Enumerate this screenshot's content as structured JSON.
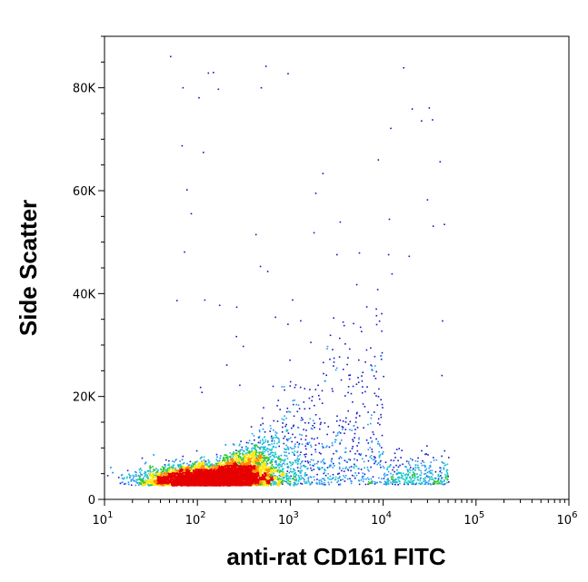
{
  "chart_data": {
    "type": "scatter",
    "title": "",
    "xlabel": "anti-rat CD161 FITC",
    "ylabel": "Side Scatter",
    "x_scale": "log",
    "xlim": [
      10,
      1000000
    ],
    "ylim": [
      0,
      90000
    ],
    "x_ticks": [
      {
        "value": 10,
        "base": "10",
        "exp": "1"
      },
      {
        "value": 100,
        "base": "10",
        "exp": "2"
      },
      {
        "value": 1000,
        "base": "10",
        "exp": "3"
      },
      {
        "value": 10000,
        "base": "10",
        "exp": "4"
      },
      {
        "value": 100000,
        "base": "10",
        "exp": "5"
      },
      {
        "value": 1000000,
        "base": "10",
        "exp": "6"
      }
    ],
    "y_ticks": [
      {
        "value": 0,
        "label": "0"
      },
      {
        "value": 20000,
        "label": "20K"
      },
      {
        "value": 40000,
        "label": "40K"
      },
      {
        "value": 60000,
        "label": "60K"
      },
      {
        "value": 80000,
        "label": "80K"
      }
    ],
    "grid": false,
    "legend": "none",
    "density_colors": [
      "#1414c8",
      "#2196f3",
      "#19c8c8",
      "#32c832",
      "#ffe600",
      "#ff8c00",
      "#e60000"
    ],
    "populations": [
      {
        "name": "main negative cluster",
        "x_center": 150,
        "y_center": 4000,
        "x_spread_decades": 0.33,
        "y_spread": 2800,
        "density": "high"
      },
      {
        "name": "diagonal scatter",
        "x_range": [
          300,
          10000
        ],
        "y_range": [
          3000,
          45000
        ],
        "density": "low"
      },
      {
        "name": "positive cluster",
        "x_range": [
          10000,
          50000
        ],
        "y_range": [
          3000,
          10000
        ],
        "density": "low"
      }
    ]
  }
}
